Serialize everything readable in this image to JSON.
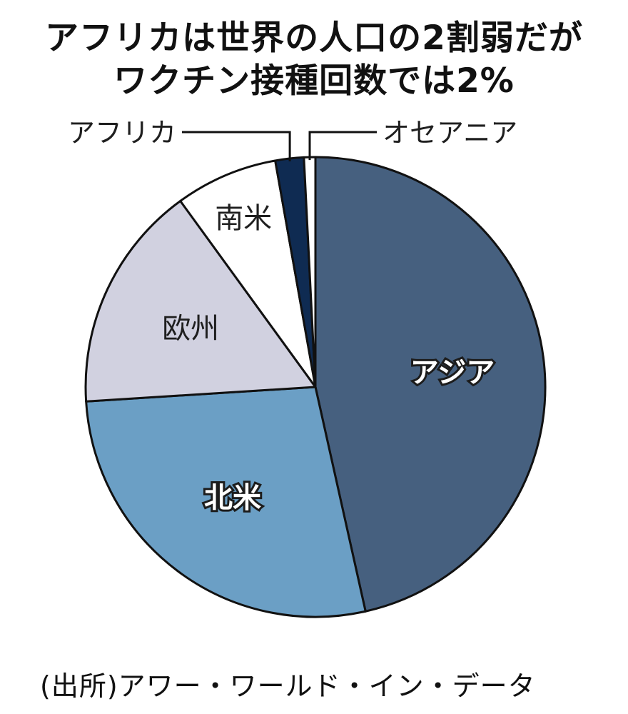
{
  "chart_data": {
    "type": "pie",
    "title": "アフリカは世界の人口の2割弱だがワクチン接種回数では2%",
    "title_lines": [
      "アフリカは世界の人口の2割弱だが",
      "ワクチン接種回数では2%"
    ],
    "categories": [
      "アジア",
      "北米",
      "欧州",
      "南米",
      "アフリカ",
      "オセアニア"
    ],
    "values": [
      46.5,
      27.5,
      16.0,
      7.2,
      2.0,
      0.8
    ],
    "colors": [
      "#46607f",
      "#6b9fc5",
      "#d1d1e0",
      "#ffffff",
      "#0f2b52",
      "#ffffff"
    ],
    "label_style": [
      "inside-light",
      "inside-light",
      "inside-dark",
      "inside-dark",
      "callout-left",
      "callout-right"
    ],
    "source": "(出所)アワー・ワールド・イン・データ"
  }
}
